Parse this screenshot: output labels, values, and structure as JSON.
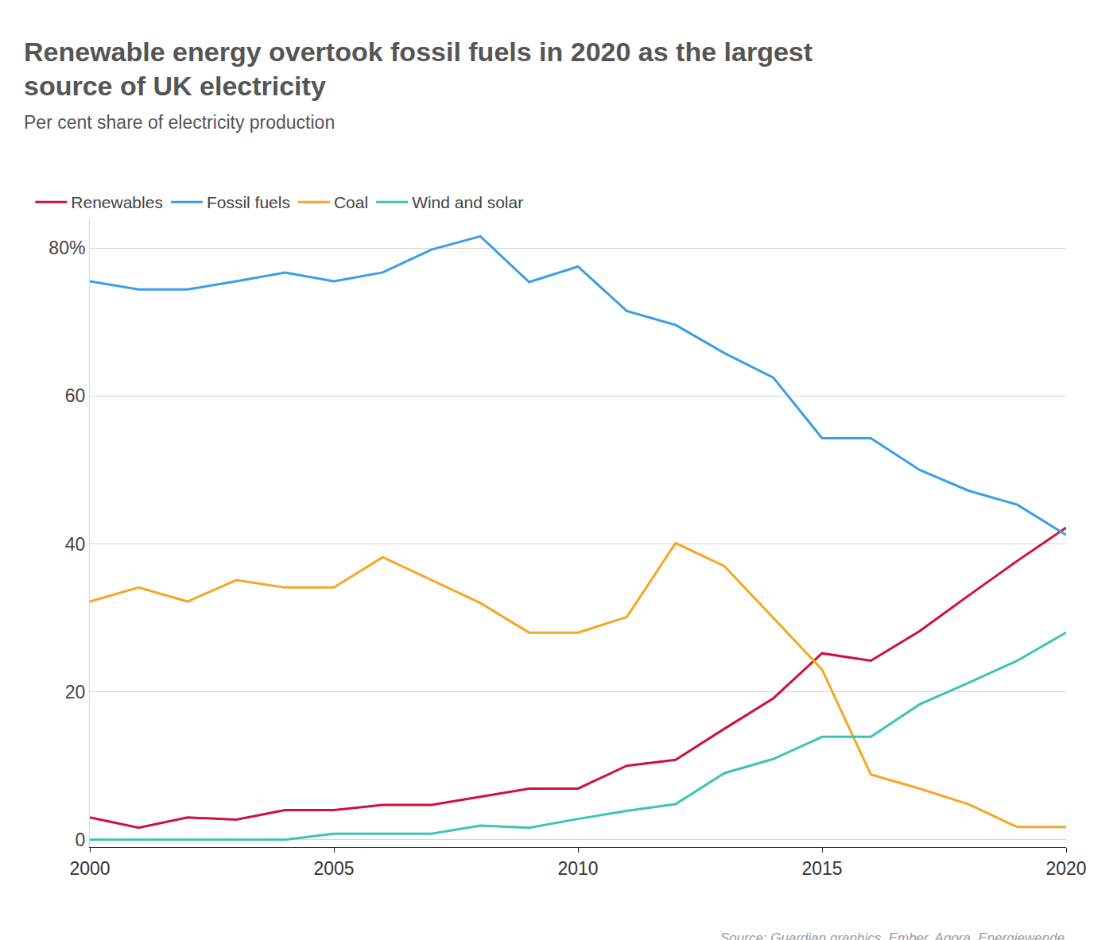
{
  "chart_data": {
    "type": "line",
    "title": "Renewable energy overtook fossil fuels in 2020 as the largest source of UK electricity",
    "subtitle": "Per cent share of electricity production",
    "source": "Source: Guardian graphics, Ember, Agora, Energiewende",
    "x": [
      2000,
      2001,
      2002,
      2003,
      2004,
      2005,
      2006,
      2007,
      2008,
      2009,
      2010,
      2011,
      2012,
      2013,
      2014,
      2015,
      2016,
      2017,
      2018,
      2019,
      2020
    ],
    "series": [
      {
        "name": "Renewables",
        "color": "#d0103a",
        "values": [
          3,
          1.6,
          3,
          2.7,
          4,
          4,
          4.7,
          4.7,
          5.8,
          6.9,
          6.9,
          10,
          10.8,
          15,
          19.1,
          25.2,
          24.2,
          28.2,
          33,
          37.7,
          42.2
        ]
      },
      {
        "name": "Fossil fuels",
        "color": "#3a9ee8",
        "values": [
          75.5,
          74.4,
          74.4,
          75.5,
          76.7,
          75.5,
          76.7,
          79.8,
          81.6,
          75.4,
          77.5,
          71.5,
          69.6,
          65.8,
          62.5,
          54.3,
          54.3,
          50,
          47.2,
          45.3,
          41.2
        ]
      },
      {
        "name": "Coal",
        "color": "#f5a623",
        "values": [
          32.2,
          34.1,
          32.2,
          35.1,
          34.1,
          34.1,
          38.2,
          35.1,
          32,
          28,
          28,
          30.1,
          40.1,
          37,
          30,
          23,
          8.8,
          6.9,
          4.8,
          1.7,
          1.7
        ]
      },
      {
        "name": "Wind and solar",
        "color": "#3cc5b0",
        "values": [
          0,
          0,
          0,
          0,
          0,
          0.8,
          0.8,
          0.8,
          1.9,
          1.6,
          2.8,
          3.9,
          4.8,
          9,
          10.9,
          13.9,
          13.9,
          18.3,
          21.2,
          24.2,
          28
        ]
      }
    ],
    "xlim": [
      2000,
      2020
    ],
    "xticks": [
      2000,
      2005,
      2010,
      2015,
      2020
    ],
    "ylim": [
      -1,
      84
    ],
    "yticks": [
      0,
      20,
      40,
      {
        "value": 80,
        "label": "80%"
      },
      60
    ],
    "grid": true,
    "legend": "top-left"
  }
}
